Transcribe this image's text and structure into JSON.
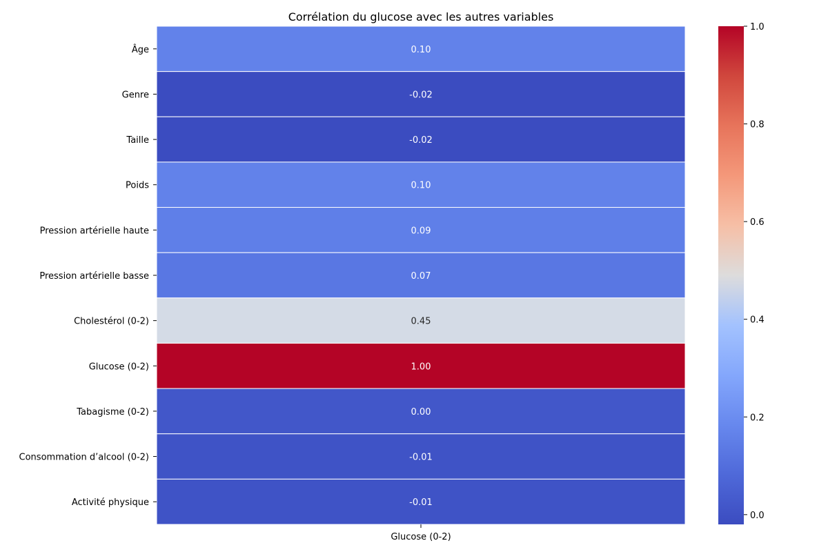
{
  "chart_data": {
    "type": "heatmap",
    "title": "Corrélation du glucose avec les autres variables",
    "columns": [
      "Glucose (0-2)"
    ],
    "rows": [
      "Âge",
      "Genre",
      "Taille",
      "Poids",
      "Pression artérielle haute",
      "Pression artérielle basse",
      "Cholestérol (0-2)",
      "Glucose (0-2)",
      "Tabagisme (0-2)",
      "Consommation d’alcool (0-2)",
      "Activité physique"
    ],
    "values": [
      0.1,
      -0.02,
      -0.02,
      0.1,
      0.09,
      0.07,
      0.45,
      1.0,
      0.0,
      -0.01,
      -0.01
    ],
    "value_labels": [
      "0.10",
      "-0.02",
      "-0.02",
      "0.10",
      "0.09",
      "0.07",
      "0.45",
      "1.00",
      "0.00",
      "-0.01",
      "-0.01"
    ],
    "colormap": "coolwarm",
    "colorbar": {
      "range": [
        -0.02,
        1.0
      ],
      "ticks": [
        0.0,
        0.2,
        0.4,
        0.6,
        0.8,
        1.0
      ],
      "tick_labels": [
        "0.0",
        "0.2",
        "0.4",
        "0.6",
        "0.8",
        "1.0"
      ]
    },
    "cell_colors": [
      "#6282ea",
      "#3b4cc0",
      "#3b4cc0",
      "#6282ea",
      "#5f7fe8",
      "#5977e3",
      "#d4dbe6",
      "#b40426",
      "#4257c9",
      "#3f53c6",
      "#3f53c6"
    ],
    "cell_text_colors": [
      "#ffffff",
      "#ffffff",
      "#ffffff",
      "#ffffff",
      "#ffffff",
      "#ffffff",
      "#262626",
      "#ffffff",
      "#ffffff",
      "#ffffff",
      "#ffffff"
    ],
    "grid_line_color": "#ffffff"
  }
}
